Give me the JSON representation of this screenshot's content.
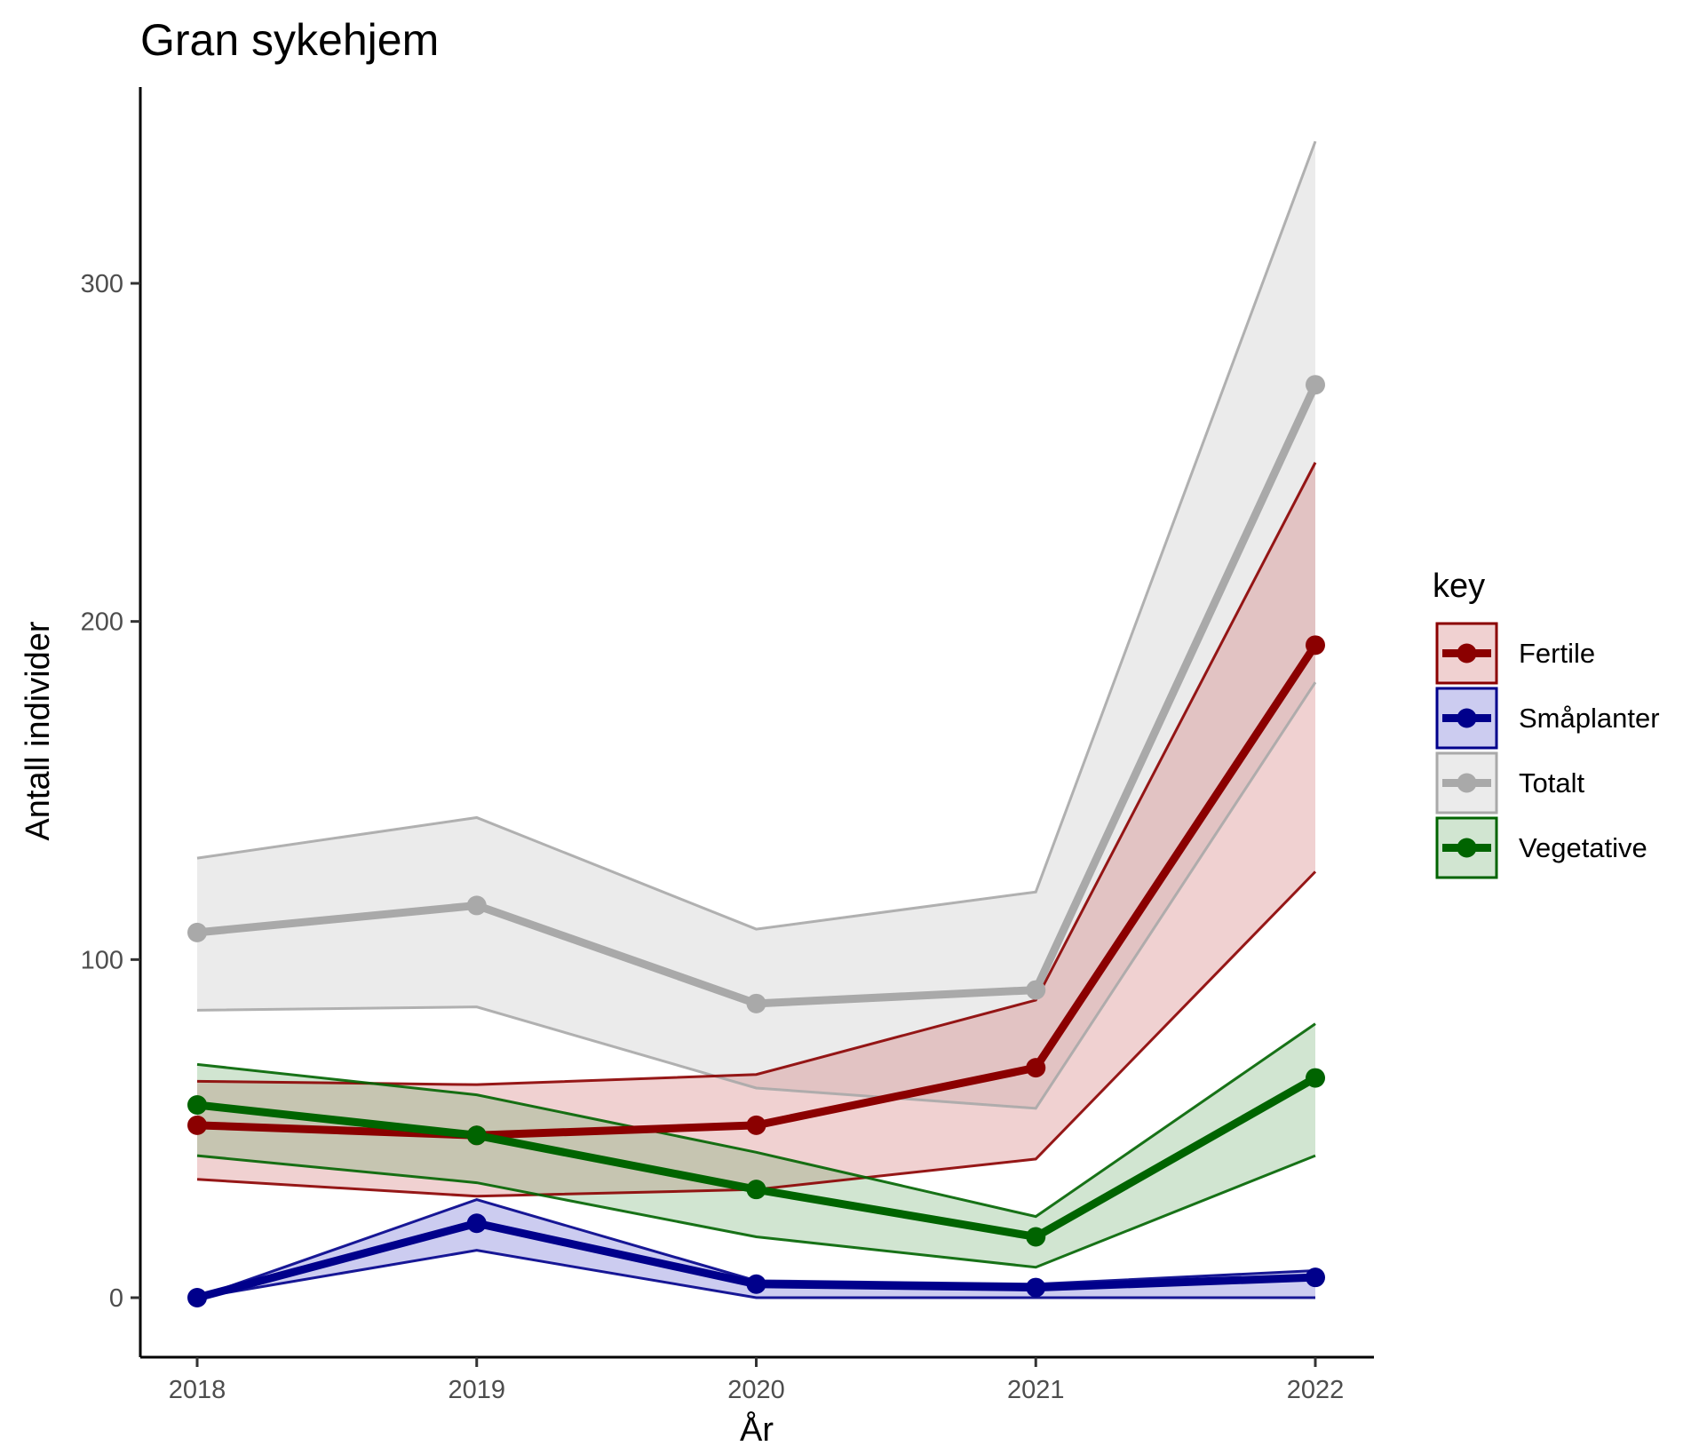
{
  "chart_data": {
    "type": "line",
    "title": "Gran sykehjem",
    "xlabel": "År",
    "ylabel": "Antall individer",
    "x": [
      2018,
      2019,
      2020,
      2021,
      2022
    ],
    "x_tick_labels": [
      "2018",
      "2019",
      "2020",
      "2021",
      "2022"
    ],
    "y_ticks": [
      0,
      100,
      200,
      300
    ],
    "y_tick_labels": [
      "0",
      "100",
      "200",
      "300"
    ],
    "ylim": [
      -17,
      358
    ],
    "grid": false,
    "legend": {
      "title": "key",
      "position": "right"
    },
    "series": [
      {
        "name": "Totalt",
        "color": "#a9a9a9",
        "fill": "#bdbdbd",
        "values": [
          108,
          116,
          87,
          91,
          270
        ],
        "lower": [
          85,
          86,
          62,
          56,
          182
        ],
        "upper": [
          130,
          142,
          109,
          120,
          342
        ]
      },
      {
        "name": "Fertile",
        "color": "#8b0000",
        "fill": "#cc6666",
        "values": [
          51,
          48,
          51,
          68,
          193
        ],
        "lower": [
          35,
          30,
          32,
          41,
          126
        ],
        "upper": [
          64,
          63,
          66,
          88,
          247
        ]
      },
      {
        "name": "Vegetative",
        "color": "#006400",
        "fill": "#66aa66",
        "values": [
          57,
          48,
          32,
          18,
          65
        ],
        "lower": [
          42,
          34,
          18,
          9,
          42
        ],
        "upper": [
          69,
          60,
          43,
          24,
          81
        ]
      },
      {
        "name": "Småplanter",
        "color": "#00008b",
        "fill": "#5555cc",
        "values": [
          0,
          22,
          4,
          3,
          6
        ],
        "lower": [
          0,
          14,
          0,
          0,
          0
        ],
        "upper": [
          0,
          29,
          5,
          4,
          8
        ]
      }
    ],
    "legend_order": [
      "Fertile",
      "Småplanter",
      "Totalt",
      "Vegetative"
    ]
  }
}
